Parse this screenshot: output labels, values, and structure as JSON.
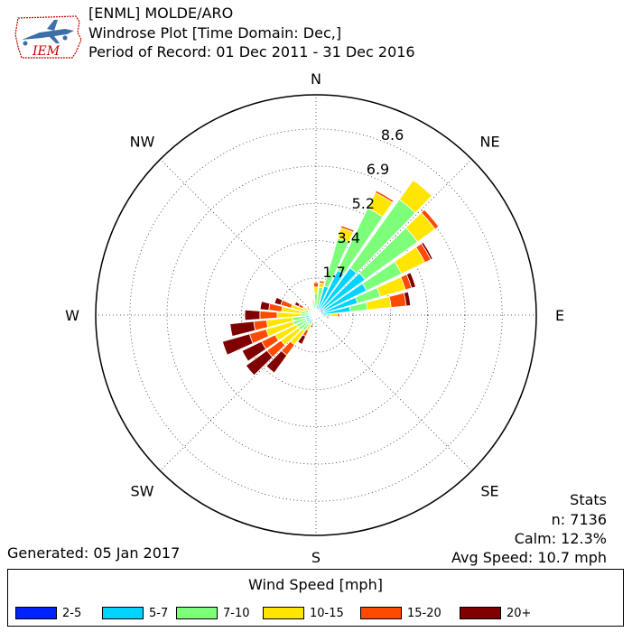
{
  "header": {
    "line1": "[ENML] MOLDE/ARO",
    "line2": "Windrose Plot [Time Domain: Dec,]",
    "line3": "Period of Record: 01 Dec 2011 - 31 Dec 2016",
    "logo_text": "IEM"
  },
  "stats": {
    "title": "Stats",
    "n": "n: 7136",
    "calm": "Calm: 12.3%",
    "avg": "Avg Speed: 10.7 mph"
  },
  "generated": "Generated: 05 Jan 2017",
  "legend": {
    "title": "Wind Speed [mph]",
    "items": [
      {
        "label": "2-5",
        "color": "#0022ff"
      },
      {
        "label": "5-7",
        "color": "#00d4ff"
      },
      {
        "label": "7-10",
        "color": "#7dff7a"
      },
      {
        "label": "10-15",
        "color": "#ffe600"
      },
      {
        "label": "15-20",
        "color": "#ff4a00"
      },
      {
        "label": "20+",
        "color": "#800000"
      }
    ]
  },
  "chart_data": {
    "type": "windrose",
    "directions": [
      "N",
      "NE",
      "E",
      "SE",
      "S",
      "SW",
      "W",
      "NW"
    ],
    "radial_ticks": [
      "1.7",
      "3.4",
      "5.2",
      "6.9",
      "8.6"
    ],
    "radial_values": [
      1.72,
      3.45,
      5.17,
      6.9,
      8.62
    ],
    "rmax": 10.2,
    "speed_bins": [
      "2-5",
      "5-7",
      "7-10",
      "10-15",
      "15-20",
      "20+"
    ],
    "sectors": [
      {
        "dir": 0,
        "values": [
          0.1,
          0.3,
          0.6,
          0.3,
          0.2,
          0.0
        ]
      },
      {
        "dir": 10,
        "values": [
          0.1,
          0.4,
          0.8,
          0.2,
          0.1,
          0.0
        ]
      },
      {
        "dir": 20,
        "values": [
          0.2,
          1.2,
          2.3,
          0.5,
          0.1,
          0.0
        ]
      },
      {
        "dir": 30,
        "values": [
          0.3,
          2.0,
          3.2,
          0.8,
          0.1,
          0.0
        ]
      },
      {
        "dir": 40,
        "values": [
          0.3,
          2.4,
          3.9,
          1.1,
          0.0,
          0.0
        ]
      },
      {
        "dir": 50,
        "values": [
          0.4,
          2.4,
          3.0,
          1.0,
          0.2,
          0.0
        ]
      },
      {
        "dir": 60,
        "values": [
          0.4,
          2.2,
          1.8,
          1.2,
          0.3,
          0.1
        ]
      },
      {
        "dir": 70,
        "values": [
          0.4,
          1.6,
          1.1,
          1.2,
          0.3,
          0.2
        ]
      },
      {
        "dir": 80,
        "values": [
          0.3,
          1.3,
          0.8,
          1.1,
          0.7,
          0.2
        ]
      },
      {
        "dir": 90,
        "values": [
          0.2,
          0.3,
          0.2,
          0.3,
          0.1,
          0.0
        ]
      },
      {
        "dir": 100,
        "values": [
          0.1,
          0.2,
          0.1,
          0.1,
          0.1,
          0.0
        ]
      },
      {
        "dir": 110,
        "values": [
          0.1,
          0.1,
          0.1,
          0.0,
          0.0,
          0.0
        ]
      },
      {
        "dir": 120,
        "values": [
          0.1,
          0.1,
          0.0,
          0.0,
          0.0,
          0.0
        ]
      },
      {
        "dir": 130,
        "values": [
          0.1,
          0.0,
          0.0,
          0.0,
          0.0,
          0.0
        ]
      },
      {
        "dir": 140,
        "values": [
          0.1,
          0.0,
          0.0,
          0.0,
          0.0,
          0.0
        ]
      },
      {
        "dir": 150,
        "values": [
          0.1,
          0.0,
          0.0,
          0.0,
          0.0,
          0.0
        ]
      },
      {
        "dir": 160,
        "values": [
          0.1,
          0.0,
          0.0,
          0.0,
          0.0,
          0.0
        ]
      },
      {
        "dir": 170,
        "values": [
          0.1,
          0.0,
          0.0,
          0.0,
          0.0,
          0.0
        ]
      },
      {
        "dir": 180,
        "values": [
          0.1,
          0.0,
          0.0,
          0.0,
          0.0,
          0.0
        ]
      },
      {
        "dir": 190,
        "values": [
          0.1,
          0.1,
          0.0,
          0.0,
          0.0,
          0.0
        ]
      },
      {
        "dir": 200,
        "values": [
          0.1,
          0.1,
          0.1,
          0.1,
          0.1,
          0.1
        ]
      },
      {
        "dir": 210,
        "values": [
          0.1,
          0.2,
          0.2,
          0.3,
          0.3,
          0.4
        ]
      },
      {
        "dir": 220,
        "values": [
          0.2,
          0.3,
          0.4,
          0.8,
          0.6,
          1.0
        ]
      },
      {
        "dir": 230,
        "values": [
          0.2,
          0.3,
          0.5,
          1.0,
          0.8,
          1.2
        ]
      },
      {
        "dir": 240,
        "values": [
          0.2,
          0.3,
          0.5,
          1.1,
          0.7,
          1.0
        ]
      },
      {
        "dir": 250,
        "values": [
          0.2,
          0.3,
          0.6,
          1.3,
          0.8,
          1.3
        ]
      },
      {
        "dir": 260,
        "values": [
          0.2,
          0.3,
          0.6,
          1.2,
          0.6,
          1.1
        ]
      },
      {
        "dir": 270,
        "values": [
          0.1,
          0.2,
          0.4,
          1.1,
          0.8,
          0.7
        ]
      },
      {
        "dir": 280,
        "values": [
          0.1,
          0.2,
          0.4,
          0.9,
          0.6,
          0.4
        ]
      },
      {
        "dir": 290,
        "values": [
          0.1,
          0.2,
          0.3,
          0.6,
          0.5,
          0.3
        ]
      },
      {
        "dir": 300,
        "values": [
          0.1,
          0.1,
          0.2,
          0.3,
          0.2,
          0.2
        ]
      },
      {
        "dir": 310,
        "values": [
          0.1,
          0.1,
          0.1,
          0.1,
          0.1,
          0.0
        ]
      },
      {
        "dir": 320,
        "values": [
          0.1,
          0.0,
          0.1,
          0.0,
          0.0,
          0.0
        ]
      },
      {
        "dir": 330,
        "values": [
          0.1,
          0.1,
          0.0,
          0.0,
          0.0,
          0.0
        ]
      },
      {
        "dir": 340,
        "values": [
          0.1,
          0.1,
          0.1,
          0.0,
          0.0,
          0.0
        ]
      },
      {
        "dir": 350,
        "values": [
          0.1,
          0.2,
          0.3,
          0.1,
          0.0,
          0.0
        ]
      }
    ]
  }
}
